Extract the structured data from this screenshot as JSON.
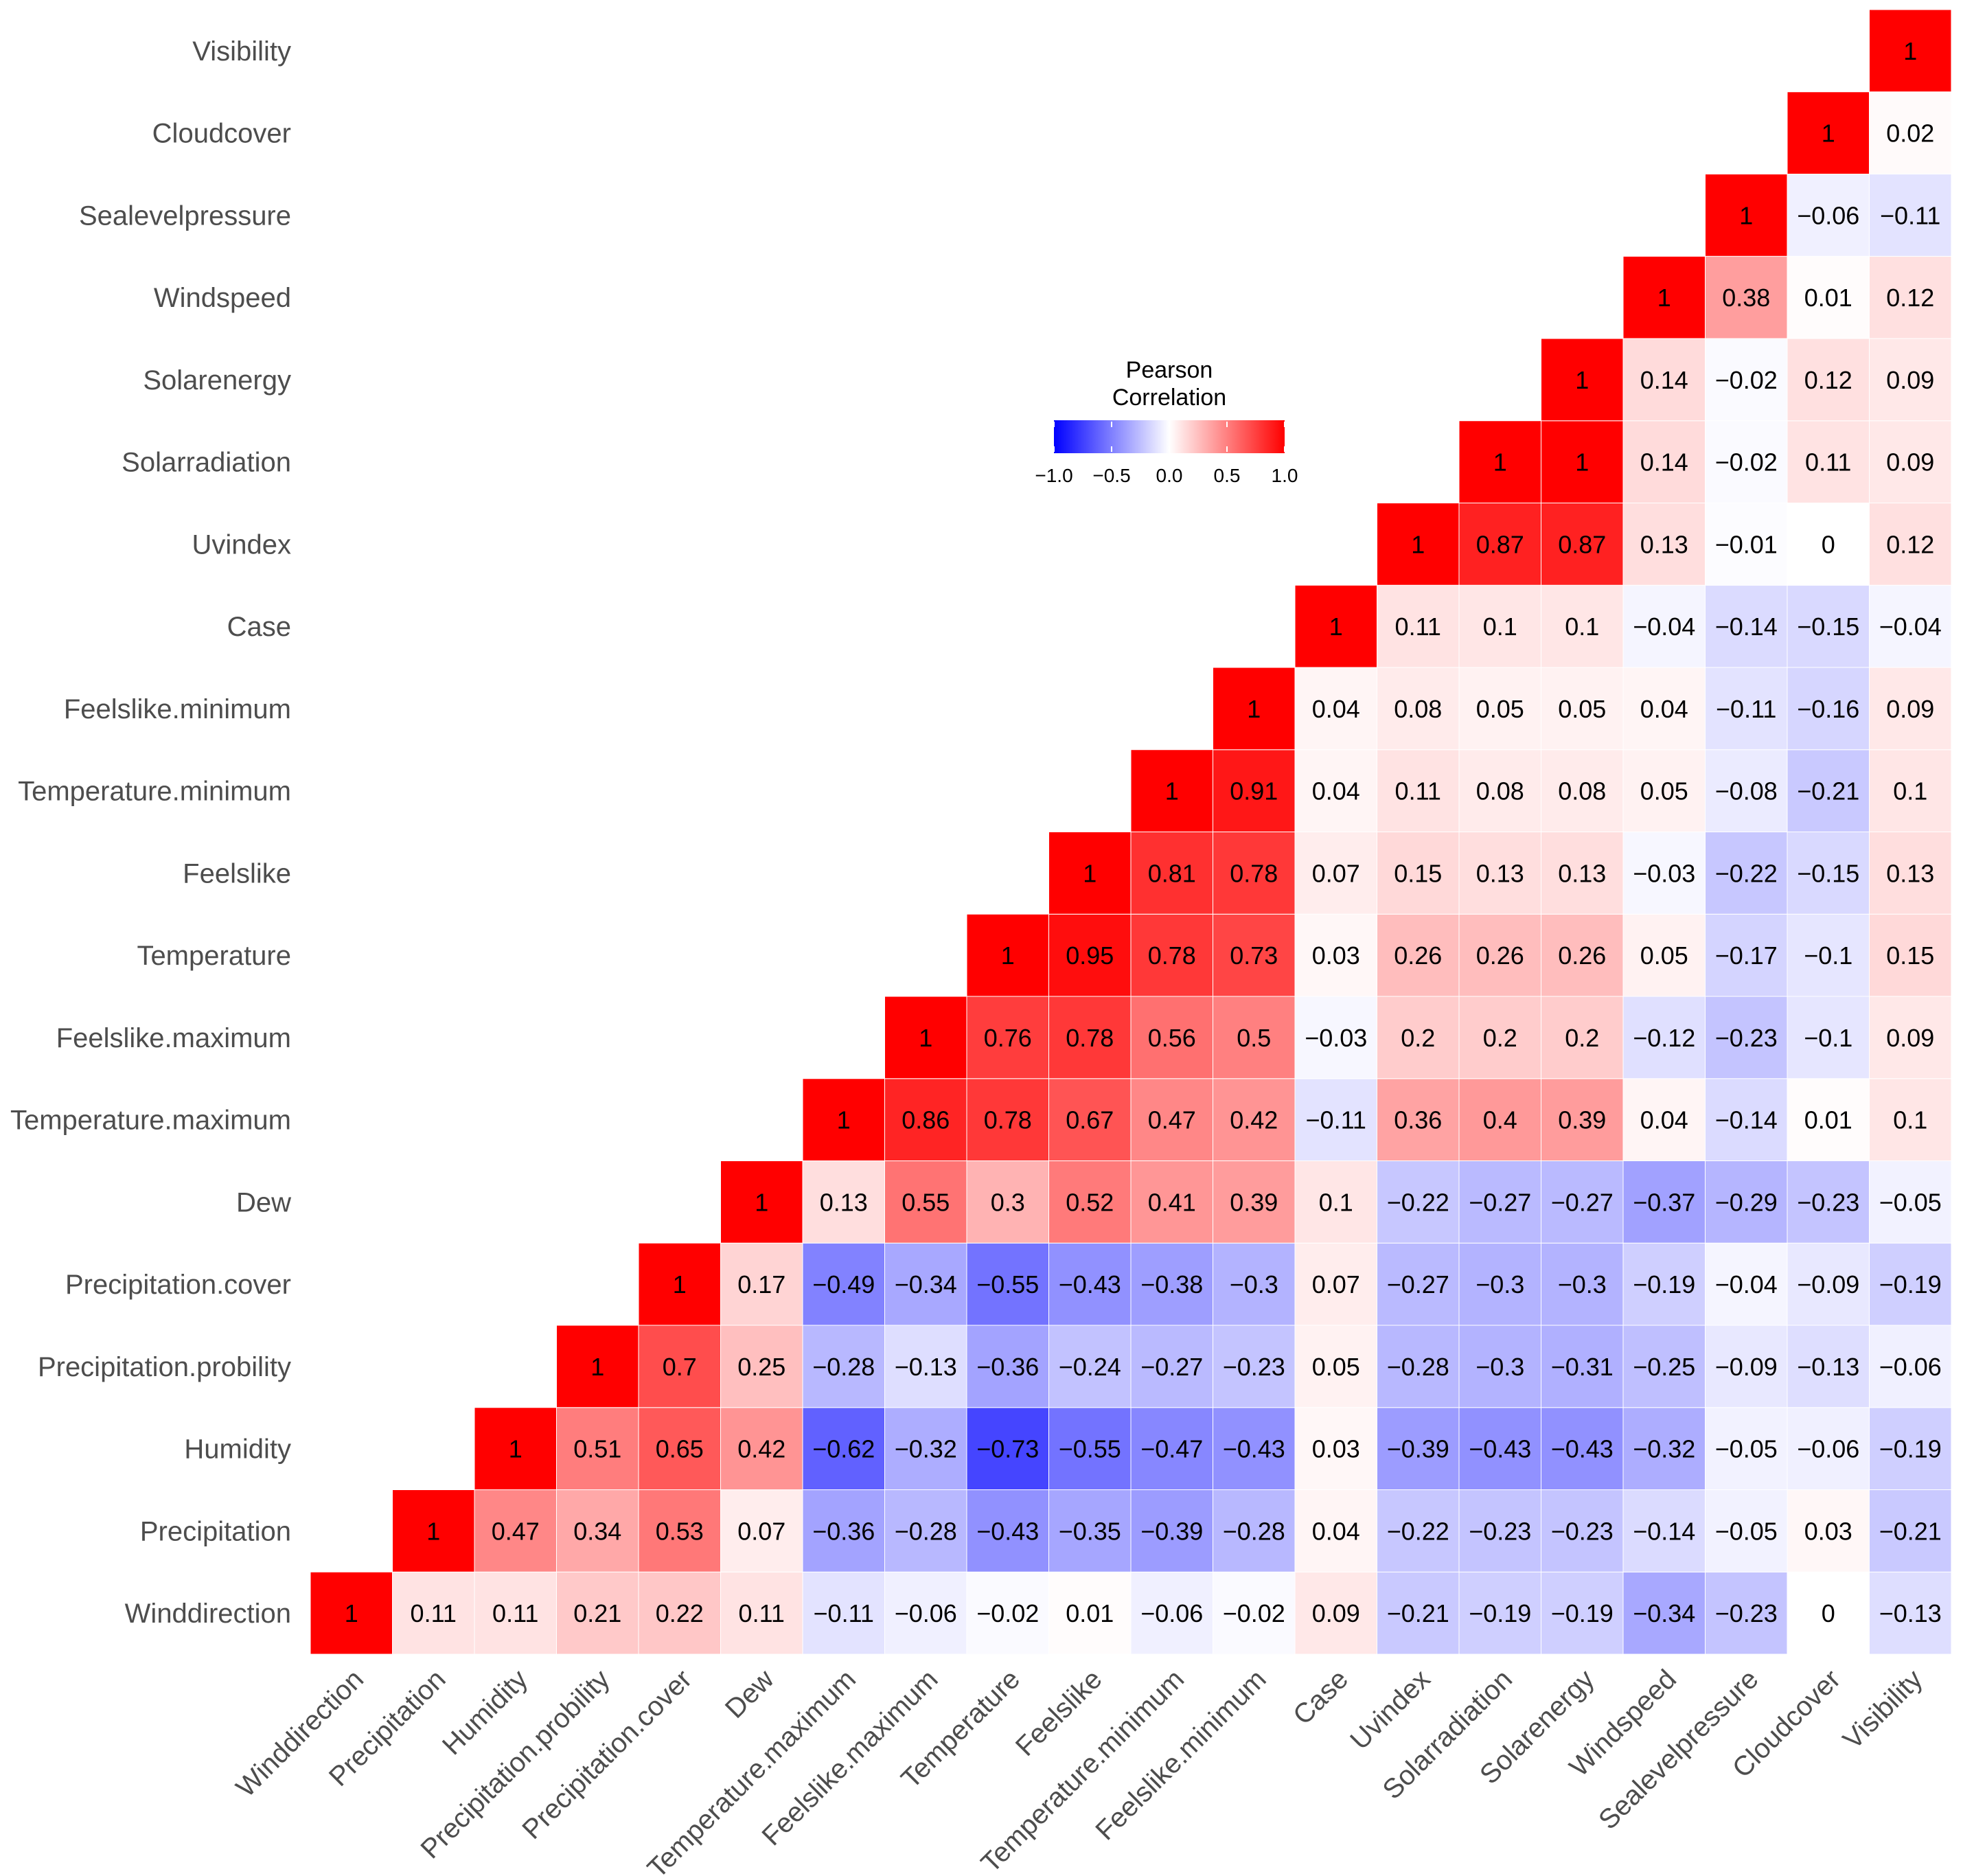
{
  "chart_data": {
    "type": "heatmap",
    "title": "",
    "xlabel": "",
    "ylabel": "",
    "variables": [
      "Winddirection",
      "Precipitation",
      "Humidity",
      "Precipitation.probility",
      "Precipitation.cover",
      "Dew",
      "Temperature.maximum",
      "Feelslike.maximum",
      "Temperature",
      "Feelslike",
      "Temperature.minimum",
      "Feelslike.minimum",
      "Case",
      "Uvindex",
      "Solarradiation",
      "Solarenergy",
      "Windspeed",
      "Sealevelpressure",
      "Cloudcover",
      "Visibility"
    ],
    "matrix_layout": "lower triangle drawn above diagonal: row i (y-axis, bottom to top) has values for columns j >= i",
    "values": [
      [
        1,
        0.11,
        0.11,
        0.21,
        0.22,
        0.11,
        -0.11,
        -0.06,
        -0.02,
        0.01,
        -0.06,
        -0.02,
        0.09,
        -0.21,
        -0.19,
        -0.19,
        -0.34,
        -0.23,
        0,
        -0.13
      ],
      [
        1,
        0.47,
        0.34,
        0.53,
        0.07,
        -0.36,
        -0.28,
        -0.43,
        -0.35,
        -0.39,
        -0.28,
        0.04,
        -0.22,
        -0.23,
        -0.23,
        -0.14,
        -0.05,
        0.03,
        -0.21
      ],
      [
        1,
        0.51,
        0.65,
        0.42,
        -0.62,
        -0.32,
        -0.73,
        -0.55,
        -0.47,
        -0.43,
        0.03,
        -0.39,
        -0.43,
        -0.43,
        -0.32,
        -0.05,
        -0.06,
        -0.19
      ],
      [
        1,
        0.7,
        0.25,
        -0.28,
        -0.13,
        -0.36,
        -0.24,
        -0.27,
        -0.23,
        0.05,
        -0.28,
        -0.3,
        -0.31,
        -0.25,
        -0.09,
        -0.13,
        -0.06
      ],
      [
        1,
        0.17,
        -0.49,
        -0.34,
        -0.55,
        -0.43,
        -0.38,
        -0.3,
        0.07,
        -0.27,
        -0.3,
        -0.3,
        -0.19,
        -0.04,
        -0.09,
        -0.19
      ],
      [
        1,
        0.13,
        0.55,
        0.3,
        0.52,
        0.41,
        0.39,
        0.1,
        -0.22,
        -0.27,
        -0.27,
        -0.37,
        -0.29,
        -0.23,
        -0.05
      ],
      [
        1,
        0.86,
        0.78,
        0.67,
        0.47,
        0.42,
        -0.11,
        0.36,
        0.4,
        0.39,
        0.04,
        -0.14,
        0.01,
        0.1
      ],
      [
        1,
        0.76,
        0.78,
        0.56,
        0.5,
        -0.03,
        0.2,
        0.2,
        0.2,
        -0.12,
        -0.23,
        -0.1,
        0.09
      ],
      [
        1,
        0.95,
        0.78,
        0.73,
        0.03,
        0.26,
        0.26,
        0.26,
        0.05,
        -0.17,
        -0.1,
        0.15
      ],
      [
        1,
        0.81,
        0.78,
        0.07,
        0.15,
        0.13,
        0.13,
        -0.03,
        -0.22,
        -0.15,
        0.13
      ],
      [
        1,
        0.91,
        0.04,
        0.11,
        0.08,
        0.08,
        0.05,
        -0.08,
        -0.21,
        0.1
      ],
      [
        1,
        0.04,
        0.08,
        0.05,
        0.05,
        0.04,
        -0.11,
        -0.16,
        0.09
      ],
      [
        1,
        0.11,
        0.1,
        0.1,
        -0.04,
        -0.14,
        -0.15,
        -0.04
      ],
      [
        1,
        0.87,
        0.87,
        0.13,
        -0.01,
        0,
        0.12
      ],
      [
        1,
        1,
        0.14,
        -0.02,
        0.11,
        0.09
      ],
      [
        1,
        0.14,
        -0.02,
        0.12,
        0.09
      ],
      [
        1,
        0.38,
        0.01,
        0.12
      ],
      [
        1,
        -0.06,
        -0.11
      ],
      [
        1,
        0.02
      ],
      [
        1
      ]
    ],
    "color_scale": {
      "low": "#0000FF",
      "mid": "#FFFFFF",
      "high": "#FF0000",
      "domain": [
        -1,
        1
      ]
    },
    "legend": {
      "title_lines": [
        "Pearson",
        "Correlation"
      ],
      "ticks": [
        -1.0,
        -0.5,
        0.0,
        0.5,
        1.0
      ],
      "tick_labels": [
        "−1.0",
        "−0.5",
        "0.0",
        "0.5",
        "1.0"
      ],
      "placement": "upper-center"
    },
    "grid": false
  }
}
